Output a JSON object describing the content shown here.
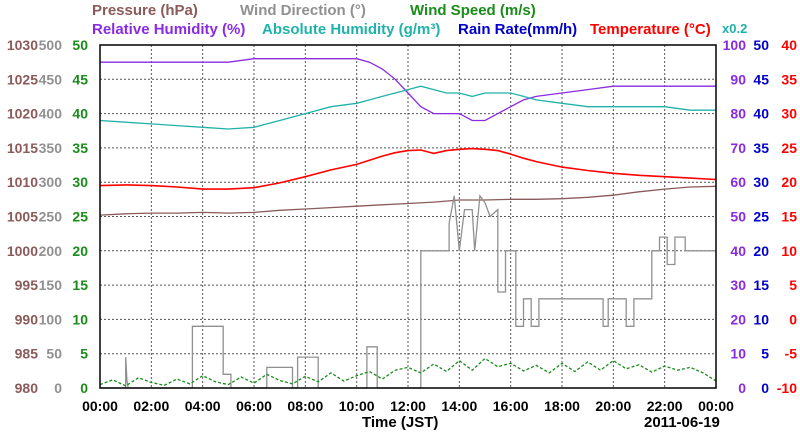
{
  "legend": {
    "pressure": {
      "label": "Pressure (hPa)",
      "color": "#8b5a5a"
    },
    "wind_direction": {
      "label": "Wind Direction (°)",
      "color": "#909090"
    },
    "wind_speed": {
      "label": "Wind Speed (m/s)",
      "color": "#1a8c1a"
    },
    "relative_humidity": {
      "label": "Relative Humidity (%)",
      "color": "#8a2be2"
    },
    "absolute_humidity": {
      "label": "Absolute Humidity (g/m³)",
      "color": "#20b2aa"
    },
    "rain_rate": {
      "label": "Rain Rate(mm/h)",
      "color": "#0000cd"
    },
    "temperature": {
      "label": "Temperature (°C)",
      "color": "#ff0000"
    },
    "ah_scale": {
      "label": "x0.2",
      "color": "#20b2aa"
    }
  },
  "chart_data": {
    "type": "line",
    "xlabel": "Time (JST)",
    "date": "2011-06-19",
    "grid": true,
    "x_ticks": [
      "00:00",
      "02:00",
      "04:00",
      "06:00",
      "08:00",
      "10:00",
      "12:00",
      "14:00",
      "16:00",
      "18:00",
      "20:00",
      "22:00",
      "00:00"
    ],
    "y_axes": {
      "pressure": {
        "ticks": [
          "1030",
          "1025",
          "1020",
          "1015",
          "1010",
          "1005",
          "1000",
          "995",
          "990",
          "985",
          "980"
        ],
        "range": [
          980,
          1030
        ]
      },
      "wind_direction": {
        "ticks": [
          "500",
          "450",
          "400",
          "350",
          "300",
          "250",
          "200",
          "150",
          "100",
          "50",
          "0"
        ],
        "range": [
          0,
          500
        ]
      },
      "wind_speed": {
        "ticks": [
          "50",
          "45",
          "40",
          "35",
          "30",
          "25",
          "20",
          "15",
          "10",
          "5",
          "0"
        ],
        "range": [
          0,
          50
        ]
      },
      "relative_humidity": {
        "ticks": [
          "100",
          "90",
          "80",
          "70",
          "60",
          "50",
          "40",
          "30",
          "20",
          "10",
          "0"
        ],
        "range": [
          0,
          100
        ]
      },
      "rain_rate": {
        "ticks": [
          "50",
          "45",
          "40",
          "35",
          "30",
          "25",
          "20",
          "15",
          "10",
          "5",
          "0"
        ],
        "range": [
          0,
          50
        ]
      },
      "temperature": {
        "ticks": [
          "40",
          "35",
          "30",
          "25",
          "20",
          "15",
          "10",
          "5",
          "0",
          "-5",
          "-10"
        ],
        "range": [
          -10,
          40
        ]
      }
    },
    "series": [
      {
        "name": "Pressure (hPa)",
        "axis": "pressure",
        "x": [
          0,
          1,
          2,
          3,
          4,
          5,
          6,
          7,
          8,
          9,
          10,
          11,
          12,
          13,
          14,
          15,
          16,
          17,
          18,
          19,
          20,
          21,
          22,
          23,
          24
        ],
        "y": [
          1005.2,
          1005.4,
          1005.5,
          1005.5,
          1005.6,
          1005.5,
          1005.6,
          1005.9,
          1006.1,
          1006.3,
          1006.5,
          1006.7,
          1006.9,
          1007.1,
          1007.4,
          1007.4,
          1007.5,
          1007.5,
          1007.6,
          1007.8,
          1008.1,
          1008.6,
          1009.0,
          1009.3,
          1009.4
        ]
      },
      {
        "name": "Relative Humidity (%)",
        "axis": "relative_humidity",
        "x": [
          0,
          1,
          2,
          3,
          4,
          5,
          6,
          7,
          8,
          9,
          10,
          10.5,
          11,
          11.5,
          12,
          12.5,
          13,
          13.5,
          14,
          14.5,
          15,
          15.5,
          16,
          16.5,
          17,
          18,
          19,
          20,
          21,
          22,
          23,
          24
        ],
        "y": [
          95,
          95,
          95,
          95,
          95,
          95,
          96,
          96,
          96,
          96,
          96,
          95,
          93,
          90,
          86,
          82,
          80,
          80,
          80,
          78,
          78,
          80,
          82,
          84,
          85,
          86,
          87,
          88,
          88,
          88,
          88,
          88
        ],
        "dx": [
          0,
          0,
          0,
          0,
          0,
          0,
          0,
          0,
          0,
          0,
          0,
          0,
          0,
          0,
          0,
          0,
          0,
          0,
          0,
          0,
          0,
          0,
          0,
          0,
          0,
          0,
          0,
          0,
          0,
          0,
          0,
          0
        ]
      },
      {
        "name": "Absolute Humidity (g/m³)",
        "axis": "relative_humidity",
        "x": [
          0,
          1,
          2,
          3,
          4,
          5,
          6,
          7,
          8,
          9,
          10,
          10.5,
          11,
          11.5,
          12,
          12.5,
          13,
          13.5,
          14,
          14.5,
          15,
          15.5,
          16,
          16.5,
          17,
          18,
          19,
          20,
          21,
          22,
          23,
          24
        ],
        "y": [
          78,
          77.5,
          77,
          76.5,
          76,
          75.5,
          76,
          78,
          80,
          82,
          83,
          84,
          85,
          86,
          87,
          88,
          87,
          86,
          86,
          85,
          86,
          86,
          86,
          85,
          84,
          83,
          82,
          82,
          82,
          82,
          81,
          81
        ]
      },
      {
        "name": "Temperature (°C)",
        "axis": "temperature",
        "x": [
          0,
          1,
          2,
          3,
          4,
          5,
          6,
          7,
          8,
          9,
          10,
          10.5,
          11,
          11.5,
          12,
          12.5,
          13,
          13.5,
          14,
          14.5,
          15,
          15.5,
          16,
          16.5,
          17,
          18,
          19,
          20,
          21,
          22,
          23,
          24
        ],
        "y": [
          19.5,
          19.6,
          19.5,
          19.3,
          19.0,
          19.0,
          19.2,
          19.9,
          20.8,
          21.8,
          22.6,
          23.2,
          23.8,
          24.3,
          24.6,
          24.7,
          24.2,
          24.6,
          24.8,
          24.9,
          24.8,
          24.6,
          24.1,
          23.5,
          23.0,
          22.2,
          21.7,
          21.3,
          21.0,
          20.8,
          20.6,
          20.4
        ]
      },
      {
        "name": "Wind Direction (°)",
        "axis": "wind_direction",
        "x": [
          0,
          1.0,
          1.0,
          1.05,
          1.1,
          1.1,
          2.0,
          3.0,
          3.6,
          3.6,
          4.8,
          4.8,
          5.1,
          5.1,
          6.5,
          6.5,
          7.5,
          7.5,
          7.7,
          7.7,
          8.5,
          8.5,
          9.0,
          9.0,
          10.4,
          10.4,
          10.8,
          10.8,
          11.5,
          11.5,
          12.0,
          12.5,
          12.5,
          13.6,
          13.6,
          13.8,
          13.9,
          14.0,
          14.2,
          14.5,
          14.6,
          14.8,
          15.0,
          15.2,
          15.5,
          15.5,
          15.8,
          15.8,
          16.2,
          16.2,
          16.5,
          16.5,
          16.8,
          16.8,
          17.1,
          17.1,
          18.5,
          19.0,
          19.6,
          19.6,
          19.8,
          19.8,
          20.5,
          20.5,
          20.8,
          20.8,
          21.5,
          21.5,
          21.8,
          21.8,
          22.1,
          22.1,
          22.4,
          22.4,
          22.8,
          22.8,
          24.0
        ],
        "y": [
          0,
          0,
          45,
          10,
          0,
          0,
          0,
          0,
          0,
          90,
          90,
          20,
          20,
          0,
          0,
          30,
          30,
          0,
          0,
          45,
          45,
          0,
          0,
          0,
          0,
          60,
          60,
          0,
          0,
          0,
          0,
          0,
          200,
          200,
          240,
          280,
          240,
          200,
          260,
          260,
          200,
          280,
          270,
          250,
          260,
          140,
          140,
          200,
          200,
          90,
          90,
          130,
          130,
          90,
          90,
          130,
          130,
          130,
          130,
          90,
          90,
          130,
          130,
          90,
          90,
          130,
          130,
          200,
          200,
          220,
          220,
          180,
          180,
          220,
          220,
          200,
          200
        ]
      },
      {
        "name": "Wind Speed (m/s)",
        "axis": "wind_speed",
        "x": [
          0,
          0.5,
          1,
          1.5,
          2,
          2.5,
          3,
          3.5,
          4,
          4.5,
          5,
          5.5,
          6,
          6.5,
          7,
          7.5,
          8,
          8.5,
          9,
          9.5,
          10,
          10.5,
          11,
          11.5,
          12,
          12.5,
          13,
          13.5,
          14,
          14.5,
          15,
          15.5,
          16,
          16.5,
          17,
          17.5,
          18,
          18.5,
          19,
          19.5,
          20,
          20.5,
          21,
          21.5,
          22,
          22.5,
          23,
          23.5,
          24
        ],
        "y": [
          0.5,
          1.2,
          0.3,
          1.5,
          0.8,
          0.4,
          1.3,
          0.6,
          1.8,
          0.9,
          0.5,
          1.6,
          0.7,
          2.0,
          1.1,
          0.6,
          1.7,
          0.9,
          2.2,
          1.0,
          1.8,
          2.4,
          1.3,
          2.6,
          3.0,
          2.2,
          3.5,
          2.4,
          4.0,
          2.6,
          4.3,
          3.1,
          3.6,
          2.5,
          3.3,
          2.2,
          3.6,
          2.4,
          3.8,
          2.6,
          4.0,
          2.8,
          3.4,
          2.3,
          3.2,
          2.6,
          3.0,
          2.2,
          1.0
        ]
      }
    ]
  }
}
